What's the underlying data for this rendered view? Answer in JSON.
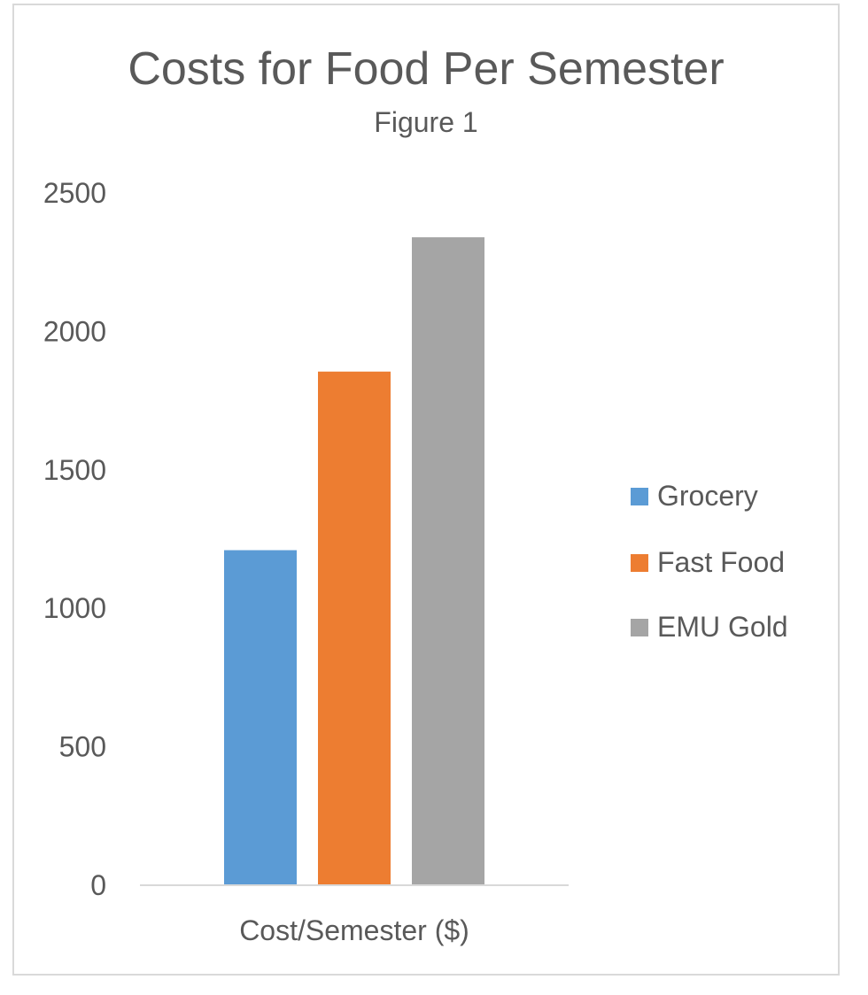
{
  "chart_data": {
    "type": "bar",
    "title": "Costs for Food Per Semester",
    "subtitle": "Figure 1",
    "xlabel": "",
    "ylabel": "",
    "categories": [
      "Cost/Semester ($)"
    ],
    "series": [
      {
        "name": "Grocery",
        "values": [
          1210
        ],
        "color": "#5b9bd5"
      },
      {
        "name": "Fast Food",
        "values": [
          1855
        ],
        "color": "#ed7d31"
      },
      {
        "name": "EMU Gold",
        "values": [
          2340
        ],
        "color": "#a5a5a5"
      }
    ],
    "ylim": [
      0,
      2500
    ],
    "yticks": [
      "0",
      "500",
      "1000",
      "1500",
      "2000",
      "2500"
    ],
    "grid": false,
    "legend_position": "right"
  }
}
